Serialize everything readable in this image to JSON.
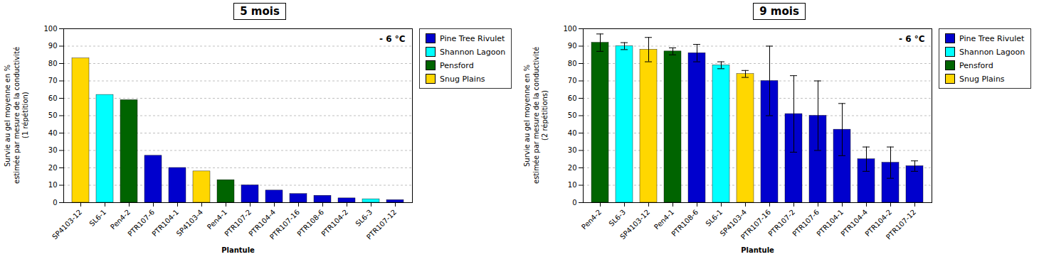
{
  "chart_data": [
    {
      "type": "bar",
      "title": "5 mois",
      "ylabel": "Survie au gel moyenne en %\nestimée par mesure de la conductivité\n(1 répétition)",
      "xlabel": "Plantule",
      "annotation": "- 6 °C",
      "categories": [
        "SP4103-12",
        "SL6-1",
        "Pen4-2",
        "PTR107-6",
        "PTR104-1",
        "SP4103-4",
        "Pen4-1",
        "PTR107-2",
        "PTR104-4",
        "PTR107-16",
        "PTR108-6",
        "PTR104-2",
        "SL6-3",
        "PTR107-12"
      ],
      "series": [
        {
          "name": "Pine Tree Rivulet",
          "color": "#0000CD",
          "values": [
            null,
            null,
            null,
            27,
            20,
            null,
            null,
            10,
            7,
            5,
            4,
            2.5,
            null,
            1.5
          ]
        },
        {
          "name": "Shannon Lagoon",
          "color": "#00FFFF",
          "values": [
            null,
            62,
            null,
            null,
            null,
            null,
            null,
            null,
            null,
            null,
            null,
            null,
            2,
            null
          ]
        },
        {
          "name": "Pensford",
          "color": "#006400",
          "values": [
            null,
            null,
            59,
            null,
            null,
            null,
            13,
            null,
            null,
            null,
            null,
            null,
            null,
            null
          ]
        },
        {
          "name": "Snug Plains",
          "color": "#FFD700",
          "values": [
            83,
            null,
            null,
            null,
            null,
            18,
            null,
            null,
            null,
            null,
            null,
            null,
            null,
            null
          ]
        }
      ],
      "ylim": [
        0,
        100
      ],
      "yticks": [
        0,
        10,
        20,
        30,
        40,
        50,
        60,
        70,
        80,
        90,
        100
      ],
      "grid": true,
      "legend": "right"
    },
    {
      "type": "bar",
      "title": "9 mois",
      "ylabel": "Survie au gel moyenne en %\nestimée par mesure de la conductivité\n(2 répétitions)",
      "xlabel": "Plantule",
      "annotation": "- 6 °C",
      "categories": [
        "Pen4-2",
        "SL6-3",
        "SP4103-12",
        "Pen4-1",
        "PTR108-6",
        "SL6-1",
        "SP4103-4",
        "PTR107-16",
        "PTR107-2",
        "PTR107-6",
        "PTR104-1",
        "PTR104-4",
        "PTR104-2",
        "PTR107-12"
      ],
      "series": [
        {
          "name": "Pine Tree Rivulet",
          "color": "#0000CD",
          "values": [
            null,
            null,
            null,
            null,
            86,
            null,
            null,
            70,
            51,
            50,
            42,
            25,
            23,
            21
          ],
          "errors": [
            null,
            null,
            null,
            null,
            5,
            null,
            null,
            20,
            22,
            20,
            15,
            7,
            9,
            3
          ]
        },
        {
          "name": "Shannon Lagoon",
          "color": "#00FFFF",
          "values": [
            null,
            90,
            null,
            null,
            null,
            79,
            null,
            null,
            null,
            null,
            null,
            null,
            null,
            null
          ],
          "errors": [
            null,
            2,
            null,
            null,
            null,
            2,
            null,
            null,
            null,
            null,
            null,
            null,
            null,
            null
          ]
        },
        {
          "name": "Pensford",
          "color": "#006400",
          "values": [
            92,
            null,
            null,
            87,
            null,
            null,
            null,
            null,
            null,
            null,
            null,
            null,
            null,
            null
          ],
          "errors": [
            5,
            null,
            null,
            2,
            null,
            null,
            null,
            null,
            null,
            null,
            null,
            null,
            null,
            null
          ]
        },
        {
          "name": "Snug Plains",
          "color": "#FFD700",
          "values": [
            null,
            null,
            88,
            null,
            null,
            null,
            74,
            null,
            null,
            null,
            null,
            null,
            null,
            null
          ],
          "errors": [
            null,
            null,
            7,
            null,
            null,
            null,
            2,
            null,
            null,
            null,
            null,
            null,
            null,
            null
          ]
        }
      ],
      "ylim": [
        0,
        100
      ],
      "yticks": [
        0,
        10,
        20,
        30,
        40,
        50,
        60,
        70,
        80,
        90,
        100
      ],
      "grid": true,
      "legend": "right"
    }
  ]
}
